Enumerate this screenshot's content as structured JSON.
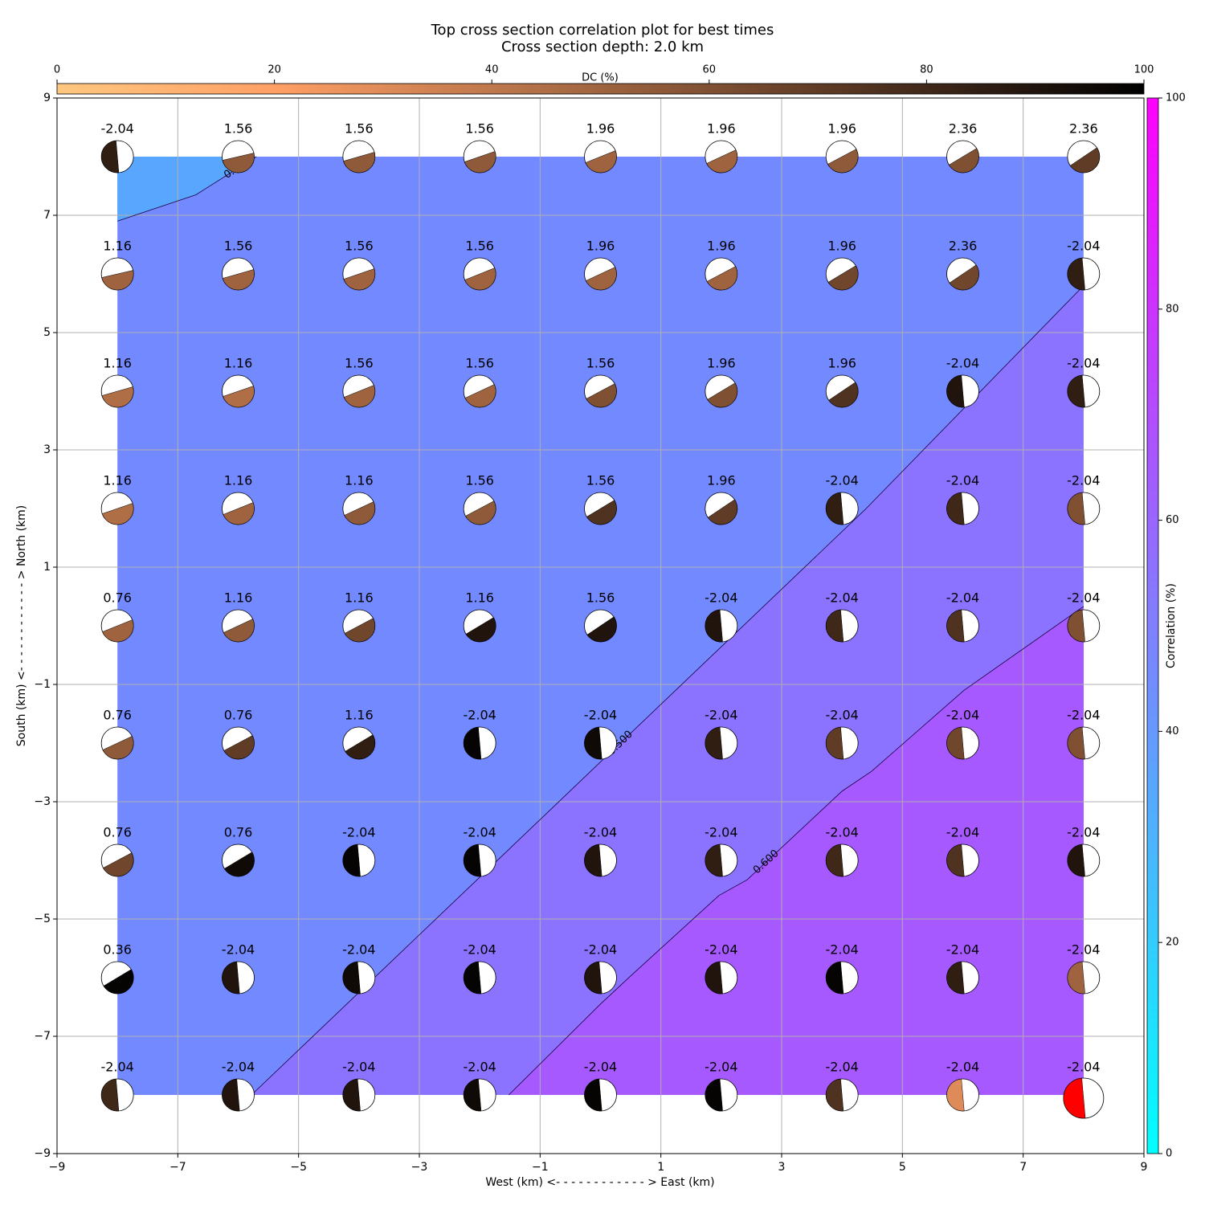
{
  "chart_data": {
    "type": "contour",
    "title": "Top cross section correlation plot for best times",
    "subtitle": "Cross section depth: 2.0 km",
    "x_label": "West (km) <- - - - - - - - - - - - > East (km)",
    "y_label": "South (km) <- - - - - - - - - - - - > North (km)",
    "xlim": [
      -9,
      9
    ],
    "ylim": [
      -9,
      9
    ],
    "xticks": [
      {
        "value": -9,
        "label": "−9"
      },
      {
        "value": -7,
        "label": "−7"
      },
      {
        "value": -5,
        "label": "−5"
      },
      {
        "value": -3,
        "label": "−3"
      },
      {
        "value": -1,
        "label": "−1"
      },
      1,
      3,
      5,
      7,
      9
    ],
    "yticks": [
      {
        "value": -9,
        "label": "−9"
      },
      {
        "value": -7,
        "label": "−7"
      },
      {
        "value": -5,
        "label": "−5"
      },
      {
        "value": -3,
        "label": "−3"
      },
      {
        "value": -1,
        "label": "−1"
      },
      1,
      3,
      5,
      7,
      9
    ],
    "grid": true,
    "grid_x": [
      -8,
      -6,
      -4,
      -2,
      0,
      2,
      4,
      6,
      8
    ],
    "grid_y": [
      8,
      6,
      4,
      2,
      0,
      -2,
      -4,
      -6,
      -8
    ],
    "values": [
      [
        -2.04,
        1.56,
        1.56,
        1.56,
        1.96,
        1.96,
        1.96,
        2.36,
        2.36
      ],
      [
        1.16,
        1.56,
        1.56,
        1.56,
        1.96,
        1.96,
        1.96,
        2.36,
        -2.04
      ],
      [
        1.16,
        1.16,
        1.56,
        1.56,
        1.56,
        1.96,
        1.96,
        -2.04,
        -2.04
      ],
      [
        1.16,
        1.16,
        1.16,
        1.56,
        1.56,
        1.96,
        -2.04,
        -2.04,
        -2.04
      ],
      [
        0.76,
        1.16,
        1.16,
        1.16,
        1.56,
        -2.04,
        -2.04,
        -2.04,
        -2.04
      ],
      [
        0.76,
        0.76,
        1.16,
        -2.04,
        -2.04,
        -2.04,
        -2.04,
        -2.04,
        -2.04
      ],
      [
        0.76,
        0.76,
        -2.04,
        -2.04,
        -2.04,
        -2.04,
        -2.04,
        -2.04,
        -2.04
      ],
      [
        0.36,
        -2.04,
        -2.04,
        -2.04,
        -2.04,
        -2.04,
        -2.04,
        -2.04,
        -2.04
      ],
      [
        -2.04,
        -2.04,
        -2.04,
        -2.04,
        -2.04,
        -2.04,
        -2.04,
        -2.04,
        -2.04
      ]
    ],
    "dc": [
      [
        85,
        55,
        55,
        55,
        50,
        50,
        55,
        60,
        70
      ],
      [
        50,
        50,
        50,
        50,
        50,
        50,
        65,
        65,
        85
      ],
      [
        45,
        45,
        50,
        50,
        60,
        60,
        75,
        90,
        85
      ],
      [
        45,
        50,
        55,
        55,
        75,
        70,
        85,
        80,
        60
      ],
      [
        50,
        55,
        65,
        90,
        90,
        90,
        80,
        75,
        60
      ],
      [
        55,
        70,
        85,
        98,
        95,
        85,
        70,
        65,
        60
      ],
      [
        65,
        95,
        98,
        98,
        90,
        85,
        80,
        75,
        90
      ],
      [
        98,
        90,
        95,
        98,
        90,
        90,
        98,
        85,
        50
      ],
      [
        80,
        90,
        90,
        95,
        98,
        98,
        75,
        30,
        80
      ]
    ],
    "best": {
      "row": 8,
      "col": 8,
      "color": "#ff0000"
    },
    "base_fill": "#7389ff",
    "contours": [
      {
        "level": 0.4,
        "label": "0.4",
        "fill": "#59a6ff",
        "x": [
          -8,
          -6.7,
          -5.7
        ],
        "y": [
          6.9,
          7.35,
          8
        ]
      },
      {
        "level": 0.5,
        "label": "0.500",
        "fill": "#8c73ff",
        "x": [
          -5.78,
          4.4,
          8
        ],
        "y": [
          -8,
          2.0,
          5.8
        ]
      },
      {
        "level": 0.6,
        "label": "0.600",
        "fill": "#a659ff",
        "x": [
          -1.52,
          0,
          0.5,
          1.96,
          2.43,
          4.0,
          4.49,
          6.02,
          8
        ],
        "y": [
          -8,
          -6.45,
          -5.97,
          -4.6,
          -4.33,
          -2.82,
          -2.48,
          -1.1,
          0.33
        ]
      }
    ],
    "dc_colorbar": {
      "label": "DC (%)",
      "lim": [
        0,
        100
      ],
      "ticks": [
        0,
        20,
        40,
        60,
        80,
        100
      ]
    },
    "corr_colorbar": {
      "label": "Correlation (%)",
      "lim": [
        0,
        100
      ],
      "ticks": [
        0,
        20,
        40,
        60,
        80,
        100
      ]
    }
  }
}
